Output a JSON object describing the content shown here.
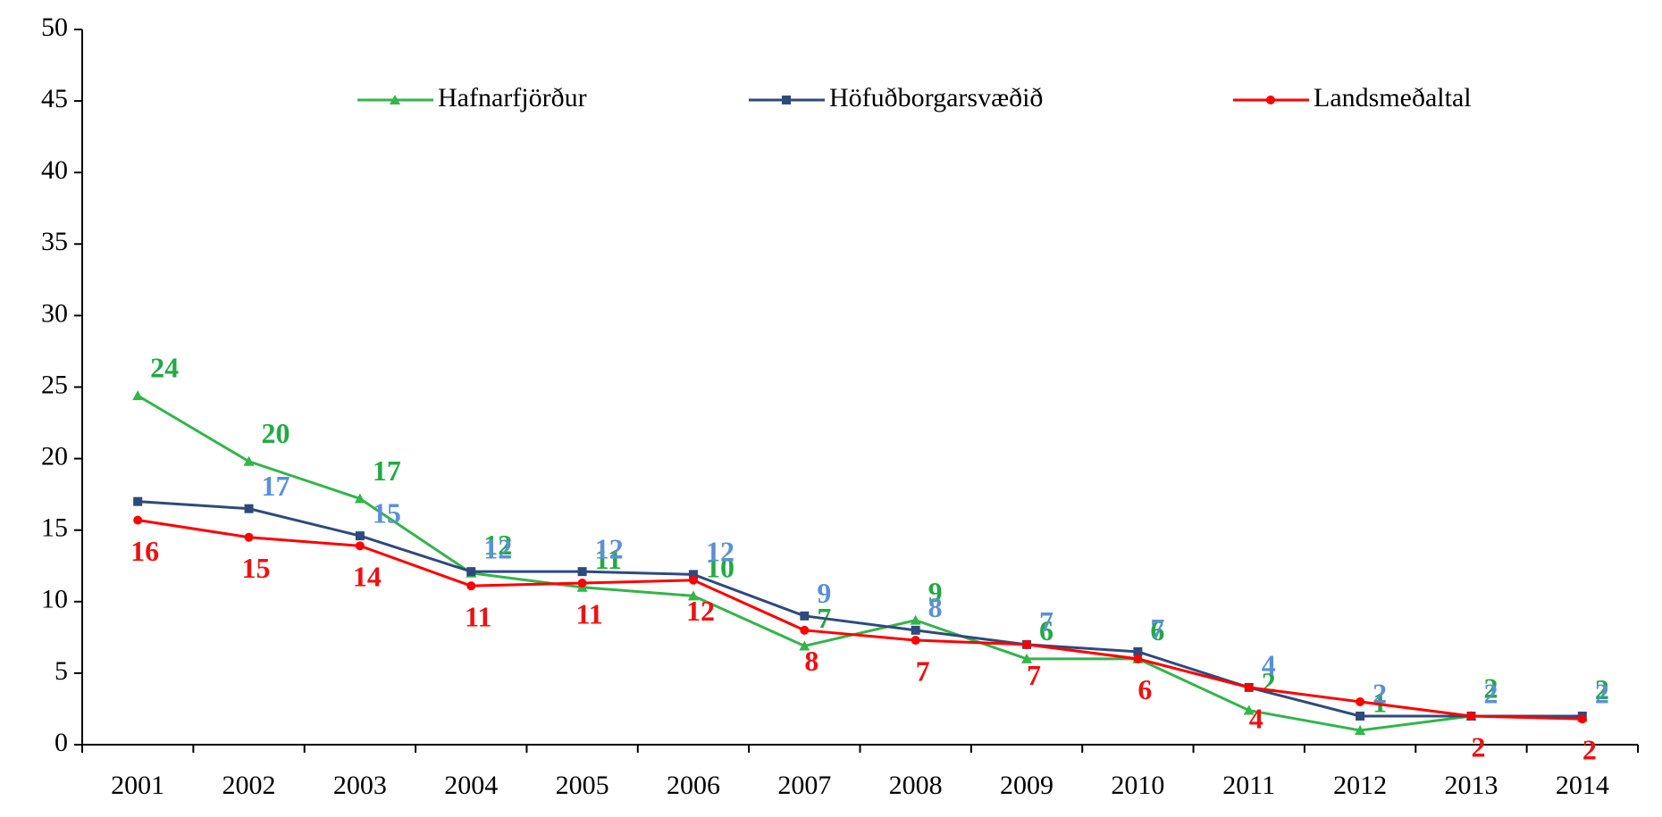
{
  "chart_data": {
    "type": "line",
    "categories": [
      "2001",
      "2002",
      "2003",
      "2004",
      "2005",
      "2006",
      "2007",
      "2008",
      "2009",
      "2010",
      "2011",
      "2012",
      "2013",
      "2014"
    ],
    "series": [
      {
        "name": "Hafnarfjörður",
        "color": "#33b54a",
        "label_color": "#22aa44",
        "marker": "triangle",
        "values": [
          24.4,
          19.8,
          17.2,
          12.0,
          11.0,
          10.4,
          6.9,
          8.7,
          6.0,
          6.0,
          2.4,
          1.0,
          2.0,
          1.9
        ],
        "value_labels": [
          "24",
          "20",
          "17",
          "12",
          "11",
          "10",
          "7",
          "9",
          "6",
          "6",
          "2",
          "1",
          "2",
          "2"
        ]
      },
      {
        "name": "Höfuðborgarsvæðið",
        "color": "#2e4a7d",
        "label_color": "#5b8fd9",
        "marker": "square",
        "values": [
          17.0,
          16.5,
          14.6,
          12.1,
          12.1,
          11.9,
          9.0,
          8.0,
          7.0,
          6.5,
          4.0,
          2.0,
          2.0,
          2.0
        ],
        "value_labels": [
          null,
          "17",
          "15",
          "12",
          "12",
          "12",
          "9",
          "8",
          "7",
          "7",
          "4",
          "2",
          "2",
          "2"
        ]
      },
      {
        "name": "Landsmeðaltal",
        "color": "#ff0000",
        "label_color": "#ee1111",
        "marker": "circle",
        "values": [
          15.7,
          14.5,
          13.9,
          11.1,
          11.3,
          11.5,
          8.0,
          7.3,
          7.0,
          6.0,
          4.0,
          3.0,
          2.0,
          1.8
        ],
        "value_labels": [
          "16",
          "15",
          "14",
          "11",
          "11",
          "12",
          "8",
          "7",
          "7",
          "6",
          "4",
          null,
          "2",
          "2"
        ]
      }
    ],
    "ylim": [
      0,
      50
    ],
    "yticks": [
      0,
      5,
      10,
      15,
      20,
      25,
      30,
      35,
      40,
      45,
      50
    ],
    "grid": false,
    "legend": "top"
  }
}
